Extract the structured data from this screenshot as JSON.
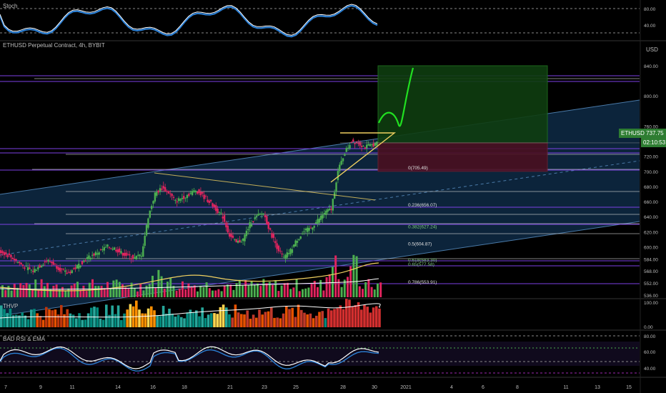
{
  "colors": {
    "up": "#4caf50",
    "down": "#e0245e",
    "channel_fill": "#0e2a45",
    "channel_line": "#4a7aa8",
    "purple": "#7b3fe4",
    "white_line": "#d8d8d8",
    "yellow": "#f0d060",
    "green_zone": "#0f3d10",
    "red_zone": "#4a1020",
    "price_tag": "#2e7d32",
    "stoch_blue": "#2b7fd4"
  },
  "panes": {
    "stoch": {
      "label": "Stoch",
      "ticks": [
        "80.00",
        "40.00"
      ]
    },
    "main": {
      "label": "ETHUSD Perpetual Contract, 4h, BYBIT",
      "currency": "USD"
    },
    "thvp": {
      "label": "THVP",
      "ticks": [
        "100.00",
        "0.00"
      ]
    },
    "rsi": {
      "label": "BAD RSI & EMA",
      "ticks": [
        "80.00",
        "60.00",
        "40.00"
      ]
    }
  },
  "price_axis": [
    "840.00",
    "800.00",
    "760.00",
    "720.00",
    "700.00",
    "680.00",
    "660.00",
    "640.00",
    "620.00",
    "600.00",
    "584.00",
    "568.00",
    "552.00",
    "536.00"
  ],
  "price_tag": {
    "symbol": "ETHUSD",
    "price": "737.75",
    "countdown": "02:10:53"
  },
  "fib_levels": [
    {
      "label": "0(705.49)",
      "price": 705.49
    },
    {
      "label": "0.236(656.07)",
      "price": 656.07
    },
    {
      "label": "0.382(627.24)",
      "price": 627.24
    },
    {
      "label": "0.5(604.87)",
      "price": 604.87
    },
    {
      "label": "0.618(583.30)",
      "price": 583.3
    },
    {
      "label": "0.65(577.58)",
      "price": 577.58
    },
    {
      "label": "0.786(553.91)",
      "price": 553.91
    }
  ],
  "time_axis": [
    "7",
    "9",
    "11",
    "14",
    "16",
    "18",
    "21",
    "23",
    "25",
    "28",
    "30",
    "2021",
    "4",
    "6",
    "8",
    "11",
    "13",
    "15"
  ],
  "chart_data": {
    "type": "candlestick",
    "title": "ETHUSD Perpetual Contract, 4h, BYBIT",
    "y_unit": "USD",
    "ylim": [
      536,
      852
    ],
    "x_dates": [
      "Dec 7",
      "Dec 9",
      "Dec 11",
      "Dec 14",
      "Dec 16",
      "Dec 18",
      "Dec 21",
      "Dec 23",
      "Dec 25",
      "Dec 28",
      "Dec 30",
      "2021",
      "Jan 4",
      "Jan 6",
      "Jan 8",
      "Jan 11",
      "Jan 13",
      "Jan 15"
    ],
    "price_path": [
      595,
      590,
      585,
      578,
      572,
      568,
      575,
      582,
      578,
      570,
      565,
      570,
      578,
      585,
      590,
      595,
      600,
      598,
      592,
      588,
      585,
      590,
      640,
      670,
      678,
      672,
      660,
      665,
      670,
      675,
      668,
      660,
      650,
      640,
      615,
      605,
      610,
      630,
      640,
      645,
      620,
      600,
      585,
      595,
      610,
      620,
      625,
      635,
      645,
      650,
      700,
      725,
      740,
      738,
      732,
      735,
      737.75
    ],
    "last_price": 737.75,
    "fibonacci": [
      {
        "ratio": 0,
        "price": 705.49
      },
      {
        "ratio": 0.236,
        "price": 656.07
      },
      {
        "ratio": 0.382,
        "price": 627.24
      },
      {
        "ratio": 0.5,
        "price": 604.87
      },
      {
        "ratio": 0.618,
        "price": 583.3
      },
      {
        "ratio": 0.65,
        "price": 577.58
      },
      {
        "ratio": 0.786,
        "price": 553.91
      }
    ],
    "trade_box": {
      "entry": 737.75,
      "target": 840,
      "stop": 700
    },
    "stoch_ticks": [
      80,
      40
    ],
    "thvp_ticks": [
      100,
      0
    ],
    "rsi_ticks": [
      80,
      60,
      40
    ],
    "grid": false
  }
}
